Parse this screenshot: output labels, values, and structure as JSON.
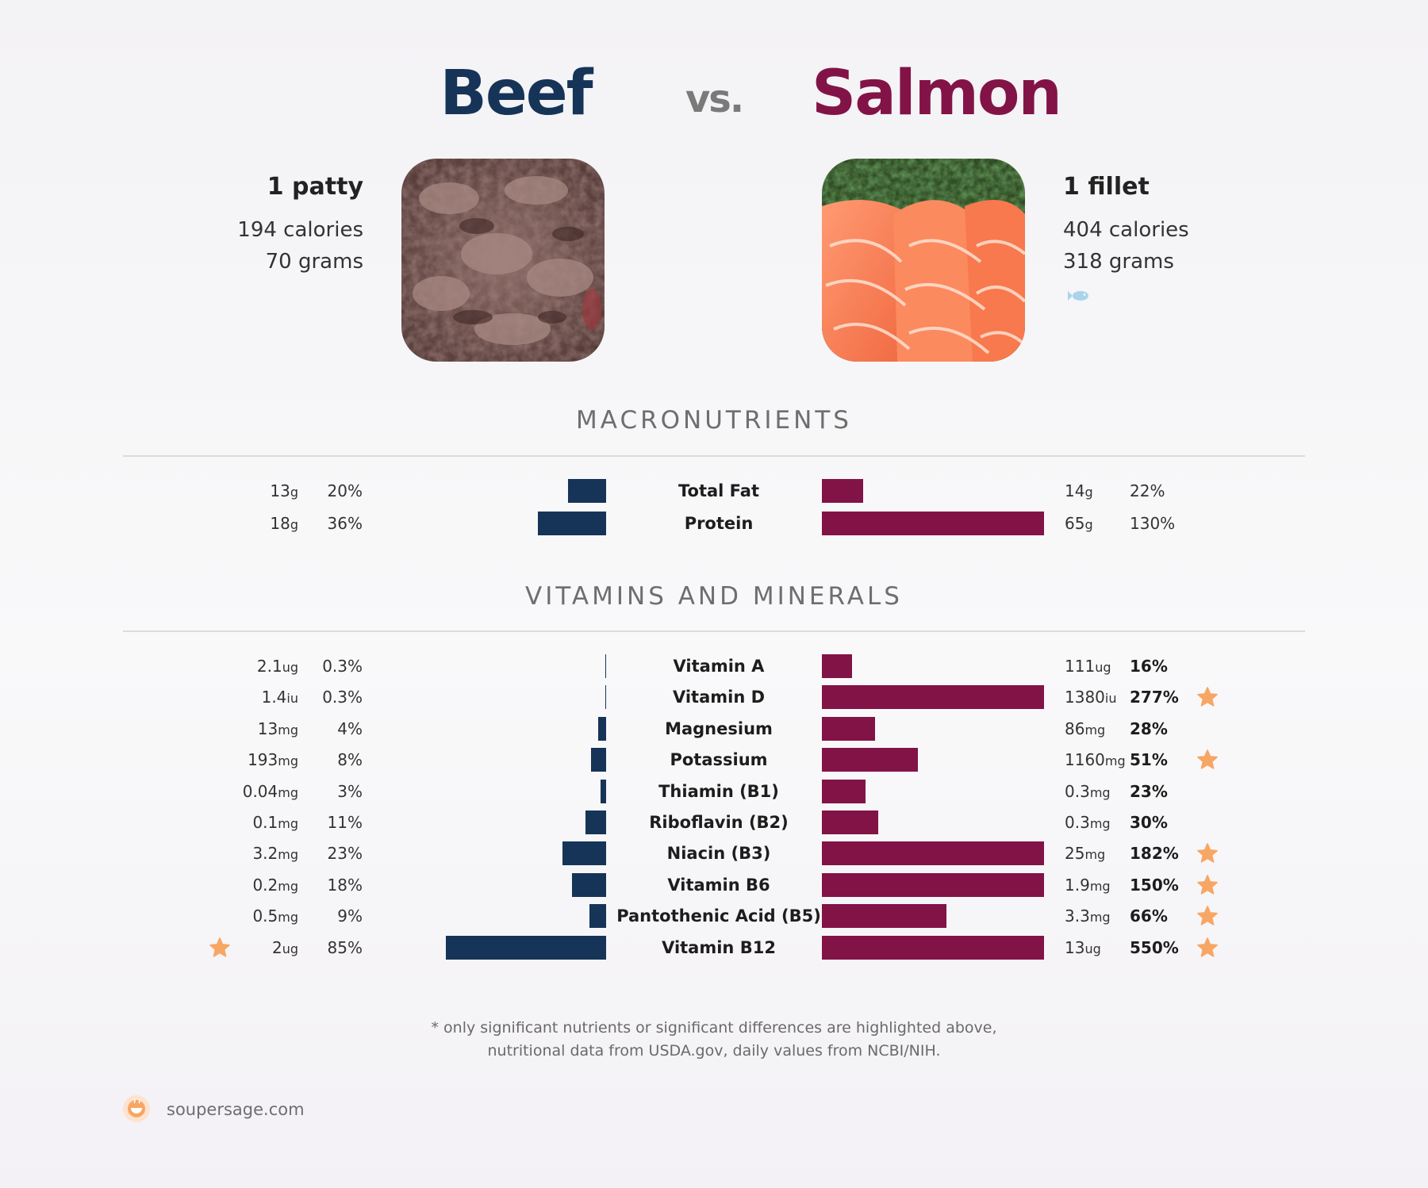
{
  "header": {
    "food_a": "Beef",
    "vs": "vs.",
    "food_b": "Salmon"
  },
  "food_a": {
    "serving": "1 patty",
    "calories": "194 calories",
    "grams": "70 grams",
    "photo_icon": "ground-beef-photo"
  },
  "food_b": {
    "serving": "1 fillet",
    "calories": "404 calories",
    "grams": "318 grams",
    "photo_icon": "salmon-fillet-photo",
    "badge_icon": "fish-icon"
  },
  "colors": {
    "beef": "#163457",
    "salmon": "#821346",
    "star": "#f7a664"
  },
  "chart_data": [
    {
      "type": "bar",
      "title": "MACRONUTRIENTS",
      "orientation": "horizontal-diverging",
      "categories": [
        "Total Fat",
        "Protein"
      ],
      "series": [
        {
          "name": "Beef",
          "amount": [
            "13",
            "18"
          ],
          "unit": [
            "g",
            "g"
          ],
          "values": [
            20,
            36
          ]
        },
        {
          "name": "Salmon",
          "amount": [
            "14",
            "65"
          ],
          "unit": [
            "g",
            "g"
          ],
          "values": [
            22,
            130
          ]
        }
      ],
      "scale_max": 100
    },
    {
      "type": "bar",
      "title": "VITAMINS AND MINERALS",
      "orientation": "horizontal-diverging",
      "categories": [
        "Vitamin A",
        "Vitamin D",
        "Magnesium",
        "Potassium",
        "Thiamin (B1)",
        "Riboflavin (B2)",
        "Niacin (B3)",
        "Vitamin B6",
        "Pantothenic Acid (B5)",
        "Vitamin B12"
      ],
      "series": [
        {
          "name": "Beef",
          "amount": [
            "2.1",
            "1.4",
            "13",
            "193",
            "0.04",
            "0.1",
            "3.2",
            "0.2",
            "0.5",
            "2"
          ],
          "unit": [
            "ug",
            "iu",
            "mg",
            "mg",
            "mg",
            "mg",
            "mg",
            "mg",
            "mg",
            "ug"
          ],
          "values": [
            0.3,
            0.3,
            4,
            8,
            3,
            11,
            23,
            18,
            9,
            85
          ],
          "starred": [
            false,
            false,
            false,
            false,
            false,
            false,
            false,
            false,
            false,
            true
          ]
        },
        {
          "name": "Salmon",
          "amount": [
            "111",
            "1380",
            "86",
            "1160",
            "0.3",
            "0.3",
            "25",
            "1.9",
            "3.3",
            "13"
          ],
          "unit": [
            "ug",
            "iu",
            "mg",
            "mg",
            "mg",
            "mg",
            "mg",
            "mg",
            "mg",
            "ug"
          ],
          "values": [
            16,
            277,
            28,
            51,
            23,
            30,
            182,
            150,
            66,
            550
          ],
          "starred": [
            false,
            true,
            false,
            true,
            false,
            false,
            true,
            true,
            true,
            true
          ]
        }
      ],
      "scale_max": 100
    }
  ],
  "footnote": {
    "line1": "* only significant nutrients or significant differences are highlighted above,",
    "line2": "nutritional data from USDA.gov, daily values from NCBI/NIH."
  },
  "brand": {
    "name": "soupersage.com",
    "icon": "soupersage-logo-icon"
  }
}
